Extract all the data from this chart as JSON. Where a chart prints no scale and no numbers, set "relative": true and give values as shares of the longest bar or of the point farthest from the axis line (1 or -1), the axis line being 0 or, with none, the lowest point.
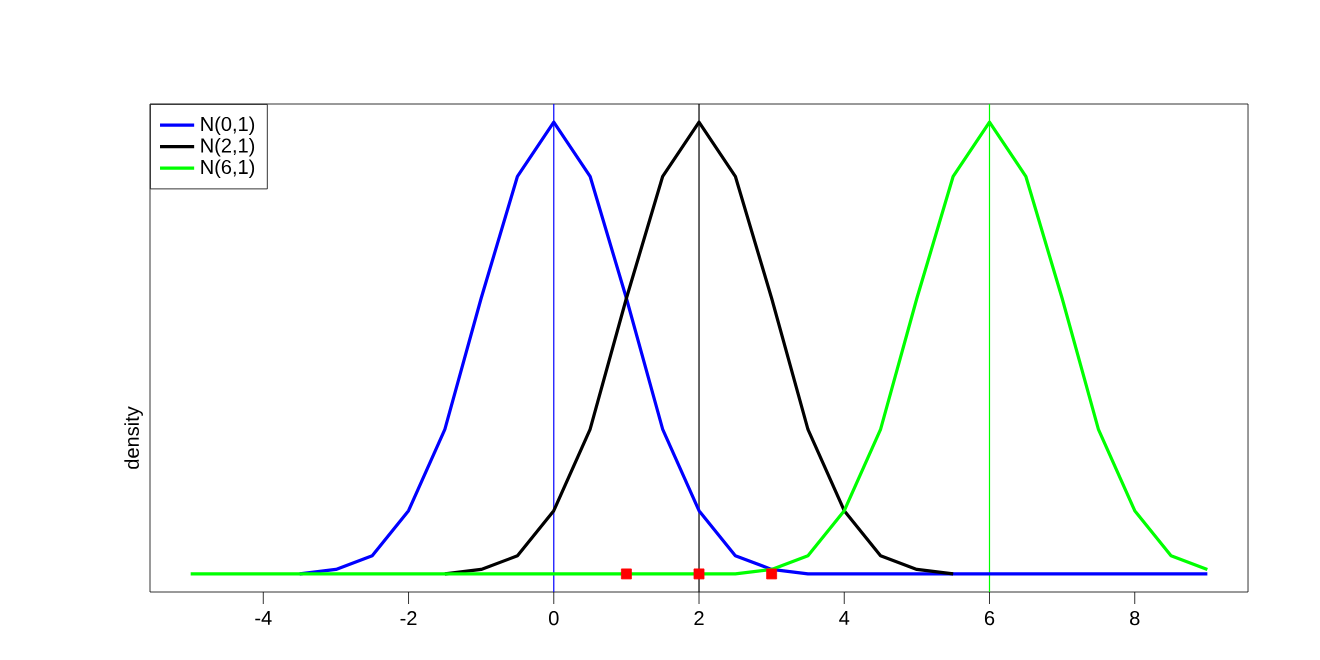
{
  "chart_data": {
    "type": "line",
    "ylabel": "density",
    "relative": true,
    "xlim": [
      -5.56,
      9.56
    ],
    "xticks": [
      -4,
      -2,
      0,
      2,
      4,
      6,
      8
    ],
    "tick_labels": "x",
    "grid": false,
    "legend": "top left",
    "series": [
      {
        "name": "N(0,1)",
        "color": "#0000ff",
        "x": [
          -3.5,
          -3,
          -2.5,
          -2,
          -1.5,
          -1,
          -0.5,
          0,
          0.5,
          1,
          1.5,
          2,
          2.5,
          3,
          3.5,
          4,
          4.5,
          5,
          5.5,
          6,
          6.5,
          7,
          7.5,
          8,
          8.5,
          9
        ],
        "values": [
          0,
          0.01,
          0.04,
          0.14,
          0.32,
          0.61,
          0.88,
          1,
          0.88,
          0.61,
          0.32,
          0.14,
          0.04,
          0.01,
          0,
          0,
          0,
          0,
          0,
          0,
          0,
          0,
          0,
          0,
          0,
          0
        ]
      },
      {
        "name": "N(2,1)",
        "color": "#000000",
        "x": [
          -1.5,
          -1,
          -0.5,
          0,
          0.5,
          1,
          1.5,
          2,
          2.5,
          3,
          3.5,
          4,
          4.5,
          5,
          5.5
        ],
        "values": [
          0,
          0.01,
          0.04,
          0.14,
          0.32,
          0.61,
          0.88,
          1,
          0.88,
          0.61,
          0.32,
          0.14,
          0.04,
          0.01,
          0
        ]
      },
      {
        "name": "N(6,1)",
        "color": "#00ff00",
        "x": [
          -5,
          -4.5,
          -4,
          -3.5,
          -3,
          -2.5,
          -2,
          -1.5,
          -1,
          -0.5,
          0,
          0.5,
          1,
          1.5,
          2,
          2.5,
          3,
          3.5,
          4,
          4.5,
          5,
          5.5,
          6,
          6.5,
          7,
          7.5,
          8,
          8.5,
          9
        ],
        "values": [
          0,
          0,
          0,
          0,
          0,
          0,
          0,
          0,
          0,
          0,
          0,
          0,
          0,
          0,
          0,
          0,
          0.01,
          0.04,
          0.14,
          0.32,
          0.61,
          0.88,
          1,
          0.88,
          0.61,
          0.32,
          0.14,
          0.04,
          0.01
        ]
      },
      {
        "type": "scatter",
        "marker": "square",
        "color": "#ff0000",
        "x": [
          1,
          2,
          3
        ],
        "values": [
          0,
          0,
          0
        ]
      }
    ],
    "ref_lines": [
      {
        "axis": "x",
        "value": 0,
        "color": "#0000ff"
      },
      {
        "axis": "x",
        "value": 2,
        "color": "#000000"
      },
      {
        "axis": "x",
        "value": 6,
        "color": "#00ff00"
      }
    ]
  }
}
